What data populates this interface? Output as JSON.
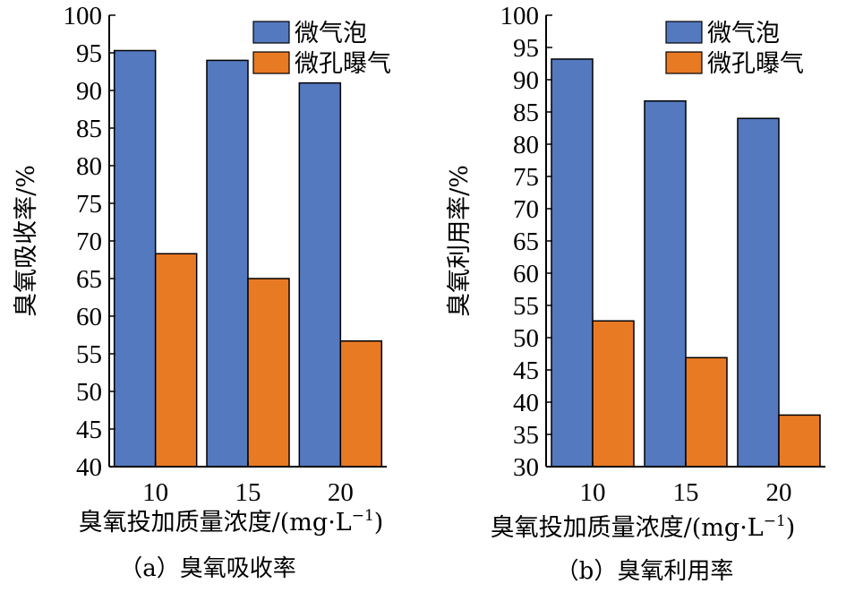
{
  "colors": {
    "series1": "#5479bf",
    "series2": "#e97a24",
    "axis": "#000000"
  },
  "chart_data": [
    {
      "type": "bar",
      "caption": "（a）臭氧吸收率",
      "categories": [
        "10",
        "15",
        "20"
      ],
      "series": [
        {
          "name": "微气泡",
          "values": [
            95.3,
            94.0,
            91.0
          ]
        },
        {
          "name": "微孔曝气",
          "values": [
            68.3,
            65.0,
            56.7
          ]
        }
      ],
      "xlabel": "臭氧投加质量浓度/(mg·L",
      "xlabel_sup": "−1",
      "xlabel_end": ")",
      "ylabel": "臭氧吸收率/%",
      "ylim": [
        40,
        100
      ],
      "yticks": [
        40,
        45,
        50,
        55,
        60,
        65,
        70,
        75,
        80,
        85,
        90,
        95,
        100
      ],
      "legend": "top-right",
      "grid": false
    },
    {
      "type": "bar",
      "caption": "（b）臭氧利用率",
      "categories": [
        "10",
        "15",
        "20"
      ],
      "series": [
        {
          "name": "微气泡",
          "values": [
            93.2,
            86.7,
            84.0
          ]
        },
        {
          "name": "微孔曝气",
          "values": [
            52.6,
            46.9,
            38.0
          ]
        }
      ],
      "xlabel": "臭氧投加质量浓度/(mg·L",
      "xlabel_sup": "−1",
      "xlabel_end": ")",
      "ylabel": "臭氧利用率/%",
      "ylim": [
        30,
        100
      ],
      "yticks": [
        30,
        35,
        40,
        45,
        50,
        55,
        60,
        65,
        70,
        75,
        80,
        85,
        90,
        95,
        100
      ],
      "legend": "top-right",
      "grid": false
    }
  ]
}
